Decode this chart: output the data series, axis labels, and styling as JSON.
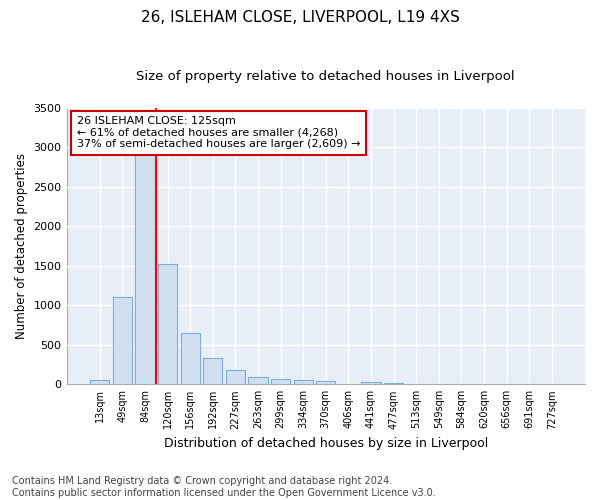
{
  "title1": "26, ISLEHAM CLOSE, LIVERPOOL, L19 4XS",
  "title2": "Size of property relative to detached houses in Liverpool",
  "xlabel": "Distribution of detached houses by size in Liverpool",
  "ylabel": "Number of detached properties",
  "footnote": "Contains HM Land Registry data © Crown copyright and database right 2024.\nContains public sector information licensed under the Open Government Licence v3.0.",
  "categories": [
    "13sqm",
    "49sqm",
    "84sqm",
    "120sqm",
    "156sqm",
    "192sqm",
    "227sqm",
    "263sqm",
    "299sqm",
    "334sqm",
    "370sqm",
    "406sqm",
    "441sqm",
    "477sqm",
    "513sqm",
    "549sqm",
    "584sqm",
    "620sqm",
    "656sqm",
    "691sqm",
    "727sqm"
  ],
  "values": [
    50,
    1100,
    2920,
    1520,
    650,
    330,
    185,
    95,
    70,
    55,
    40,
    0,
    30,
    20,
    0,
    0,
    0,
    0,
    0,
    0,
    0
  ],
  "bar_color": "#d0e0f0",
  "bar_edge_color": "#7ab0d4",
  "ylim": [
    0,
    3500
  ],
  "yticks": [
    0,
    500,
    1000,
    1500,
    2000,
    2500,
    3000,
    3500
  ],
  "property_line_x": 3,
  "annotation_text": "26 ISLEHAM CLOSE: 125sqm\n← 61% of detached houses are smaller (4,268)\n37% of semi-detached houses are larger (2,609) →",
  "annotation_box_color": "#cc0000",
  "background_color": "#ffffff",
  "plot_bg_color": "#e8eef8",
  "grid_color": "#ffffff",
  "title1_fontsize": 11,
  "title2_fontsize": 9.5,
  "xlabel_fontsize": 9,
  "ylabel_fontsize": 8.5,
  "annotation_fontsize": 8,
  "footnote_fontsize": 7
}
